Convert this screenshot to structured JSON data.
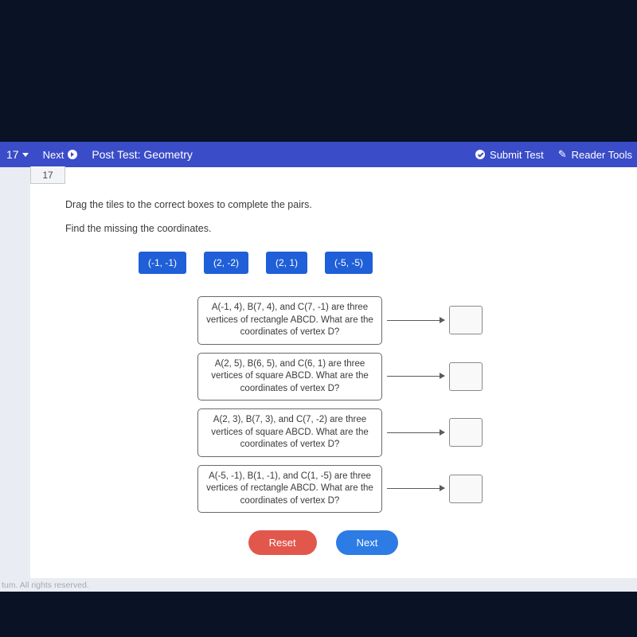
{
  "topbar": {
    "question_num": "17",
    "next_label": "Next",
    "title": "Post Test: Geometry",
    "submit_label": "Submit Test",
    "tools_label": "Reader Tools"
  },
  "qnum_tab": "17",
  "instruction": "Drag the tiles to the correct boxes to complete the pairs.",
  "subinstruction": "Find the missing the coordinates.",
  "tiles": [
    "(-1, -1)",
    "(2, -2)",
    "(2, 1)",
    "(-5, -5)"
  ],
  "problems": [
    "A(-1, 4), B(7, 4), and C(7, -1) are three vertices of rectangle ABCD. What are the coordinates of vertex D?",
    "A(2, 5), B(6, 5), and C(6, 1) are three vertices of square ABCD. What are the coordinates of vertex D?",
    "A(2, 3), B(7, 3), and C(7, -2) are three vertices of square ABCD. What are the coordinates of vertex D?",
    "A(-5, -1), B(1, -1), and C(1, -5) are three vertices of rectangle ABCD. What are the coordinates of vertex D?"
  ],
  "buttons": {
    "reset": "Reset",
    "next": "Next"
  },
  "footer": "tum. All rights reserved.",
  "colors": {
    "topbar_bg": "#3a4cc7",
    "tile_bg": "#1f5fd8",
    "reset_bg": "#e2574c",
    "next_bg": "#2d7be5",
    "page_bg": "#ffffff",
    "screen_bg": "#e9edf3",
    "body_bg": "#0a1225"
  }
}
